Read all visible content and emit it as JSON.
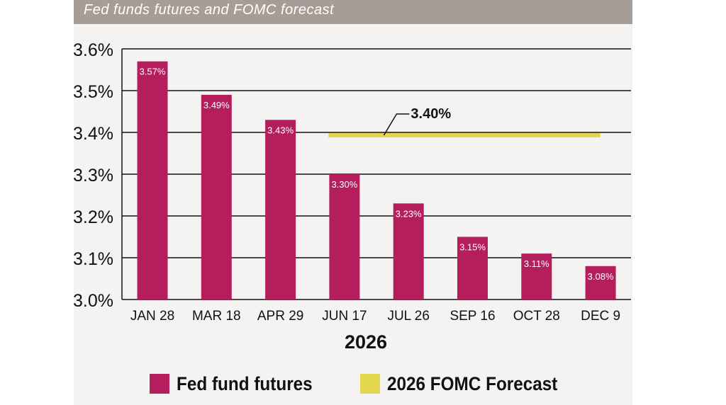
{
  "chart_data": {
    "type": "bar",
    "title": "Fed funds futures and FOMC forecast",
    "xlabel": "2026",
    "ylabel": "",
    "categories": [
      "JAN 28",
      "MAR 18",
      "APR 29",
      "JUN 17",
      "JUL 26",
      "SEP 16",
      "OCT 28",
      "DEC 9"
    ],
    "series": [
      {
        "name": "Fed fund futures",
        "type": "bar",
        "values": [
          3.57,
          3.49,
          3.43,
          3.3,
          3.23,
          3.15,
          3.11,
          3.08
        ],
        "data_labels": [
          "3.57%",
          "3.49%",
          "3.43%",
          "3.30%",
          "3.23%",
          "3.15%",
          "3.11%",
          "3.08%"
        ],
        "color": "#b51e5c"
      },
      {
        "name": "2026 FOMC Forecast",
        "type": "line",
        "value": 3.4,
        "from_category": "JUN 17",
        "to_category": "DEC 9",
        "label": "3.40%",
        "color": "#e3d74e"
      }
    ],
    "ylim": [
      3.0,
      3.6
    ],
    "yticks": [
      3.0,
      3.1,
      3.2,
      3.3,
      3.4,
      3.5,
      3.6
    ],
    "ytick_labels": [
      "3.0%",
      "3.1%",
      "3.2%",
      "3.3%",
      "3.4%",
      "3.5%",
      "3.6%"
    ],
    "grid": true,
    "legend": "bottom"
  }
}
